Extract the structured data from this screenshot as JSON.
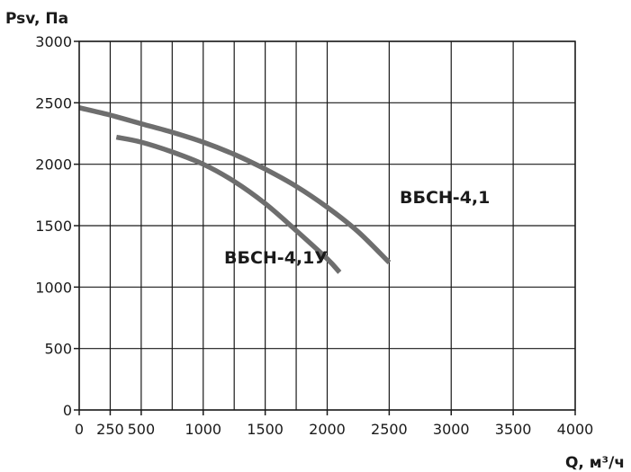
{
  "chart_data": {
    "type": "line",
    "title": "",
    "xlabel": "Q, м³/ч",
    "ylabel": "Psv, Па",
    "xlim": [
      0,
      4000
    ],
    "ylim": [
      0,
      3000
    ],
    "x_ticks": [
      0,
      250,
      500,
      1000,
      1500,
      2000,
      2500,
      3000,
      3500,
      4000
    ],
    "x_tick_labels": [
      "0",
      "250",
      "500",
      "1000",
      "1500",
      "2000",
      "2500",
      "3000",
      "3500",
      "4000"
    ],
    "x_grid": [
      0,
      250,
      500,
      750,
      1000,
      1250,
      1500,
      1750,
      2000,
      2500,
      3000,
      3500,
      4000
    ],
    "y_ticks": [
      0,
      500,
      1000,
      1500,
      2000,
      2500,
      3000
    ],
    "y_tick_labels": [
      "0",
      "500",
      "1000",
      "1500",
      "2000",
      "2500",
      "3000"
    ],
    "grid": true,
    "legend": "none",
    "colors": {
      "series": "#6e6e6e",
      "grid": "#1a1a1a",
      "text": "#1a1a1a"
    },
    "series": [
      {
        "name": "ВБСН-4,1",
        "x": [
          0,
          250,
          500,
          750,
          1000,
          1250,
          1500,
          1750,
          2000,
          2250,
          2500
        ],
        "y": [
          2460,
          2400,
          2330,
          2260,
          2180,
          2080,
          1960,
          1820,
          1650,
          1450,
          1200
        ]
      },
      {
        "name": "ВБСН-4,1У",
        "x": [
          300,
          500,
          750,
          1000,
          1250,
          1500,
          1750,
          2000,
          2100
        ],
        "y": [
          2220,
          2180,
          2100,
          2000,
          1860,
          1680,
          1460,
          1230,
          1120
        ]
      }
    ]
  }
}
